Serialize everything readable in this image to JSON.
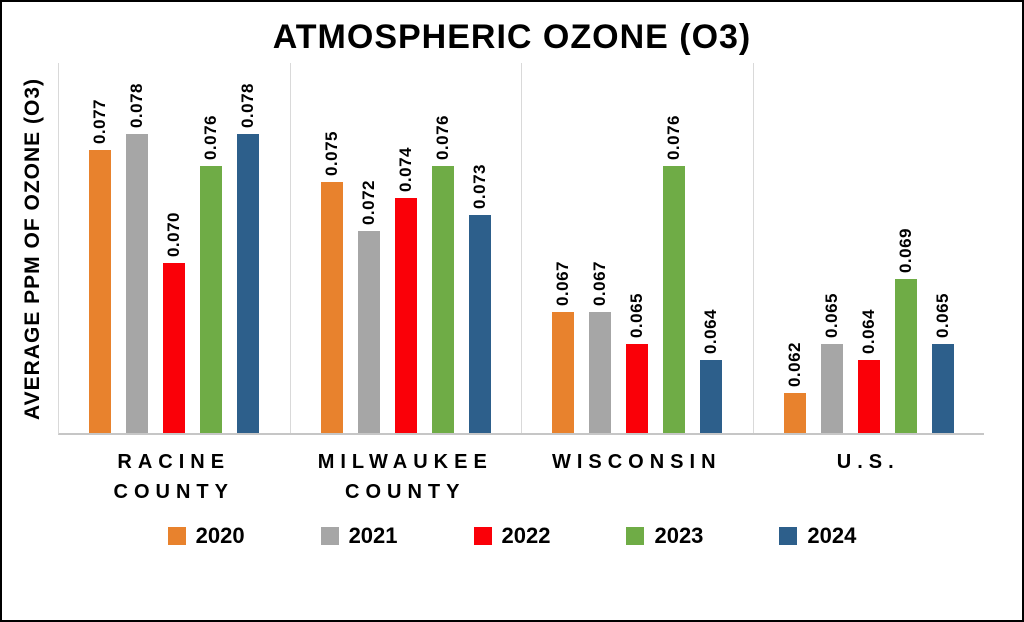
{
  "chart_data": {
    "type": "bar",
    "title": "ATMOSPHERIC OZONE (O3)",
    "xlabel": "",
    "ylabel": "AVERAGE PPM  OF OZONE (O3)",
    "categories": [
      "RACINE COUNTY",
      "MILWAUKEE COUNTY",
      "WISCONSIN",
      "U.S."
    ],
    "series": [
      {
        "name": "2020",
        "color": "#E8822D",
        "values": [
          0.077,
          0.075,
          0.067,
          0.062
        ]
      },
      {
        "name": "2021",
        "color": "#A6A6A6",
        "values": [
          0.078,
          0.072,
          0.067,
          0.065
        ]
      },
      {
        "name": "2022",
        "color": "#FA0008",
        "values": [
          0.07,
          0.074,
          0.065,
          0.064
        ]
      },
      {
        "name": "2023",
        "color": "#6FAC46",
        "values": [
          0.076,
          0.076,
          0.076,
          0.069
        ]
      },
      {
        "name": "2024",
        "color": "#2D5F8B",
        "values": [
          0.078,
          0.073,
          0.064,
          0.065
        ]
      }
    ],
    "value_label_decimals": 3,
    "ylim": [
      0.0595,
      0.0825
    ],
    "grid": "vertical-category-separators",
    "legend_position": "bottom",
    "data_label_orientation": "vertical"
  }
}
